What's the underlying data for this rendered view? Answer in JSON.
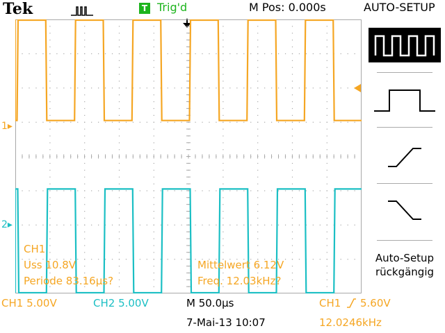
{
  "header": {
    "brand": "Tek",
    "trigger_status": "Trig'd",
    "trigger_icon_letter": "T",
    "horizontal_position": "M Pos: 0.000s",
    "menu_title": "AUTO-SETUP"
  },
  "colors": {
    "ch1": "#f5a623",
    "ch2": "#1bbfc4",
    "trigger_green": "#1db41d",
    "grid": "#a8a8a8"
  },
  "channels": {
    "ch1_marker": "1",
    "ch2_marker": "2"
  },
  "measurements": {
    "channel": "CH1",
    "vss": "Uss 10.8V",
    "period": "Periode 83.16µs?",
    "mean": "Mittelwert 6.12V",
    "freq": "Freq. 12.03kHz?"
  },
  "menu": {
    "items": [
      {
        "icon": "square-wave-multi-icon",
        "selected": true
      },
      {
        "icon": "square-pulse-icon",
        "selected": false
      },
      {
        "icon": "rising-edge-icon",
        "selected": false
      },
      {
        "icon": "falling-edge-icon",
        "selected": false
      }
    ],
    "undo_label": "Auto-Setup rückgängig"
  },
  "status": {
    "ch1_scale": "CH1  5.00V",
    "ch2_scale": "CH2  5.00V",
    "timebase": "M 50.0µs",
    "trigger_source": "CH1",
    "trigger_level": "5.60V",
    "date_time": "7-Mai-13 10:07",
    "trigger_freq": "12.0246kHz"
  },
  "waveform": {
    "period_divisions": 1.66,
    "duty": 0.5,
    "ch1_phase_divisions": 0.05,
    "ch2_phase_divisions": 0.9,
    "ch1_high_div": 8.1,
    "ch1_low_div": 5.05,
    "ch2_high_div": 3.05,
    "ch2_low_div": 0.0
  }
}
